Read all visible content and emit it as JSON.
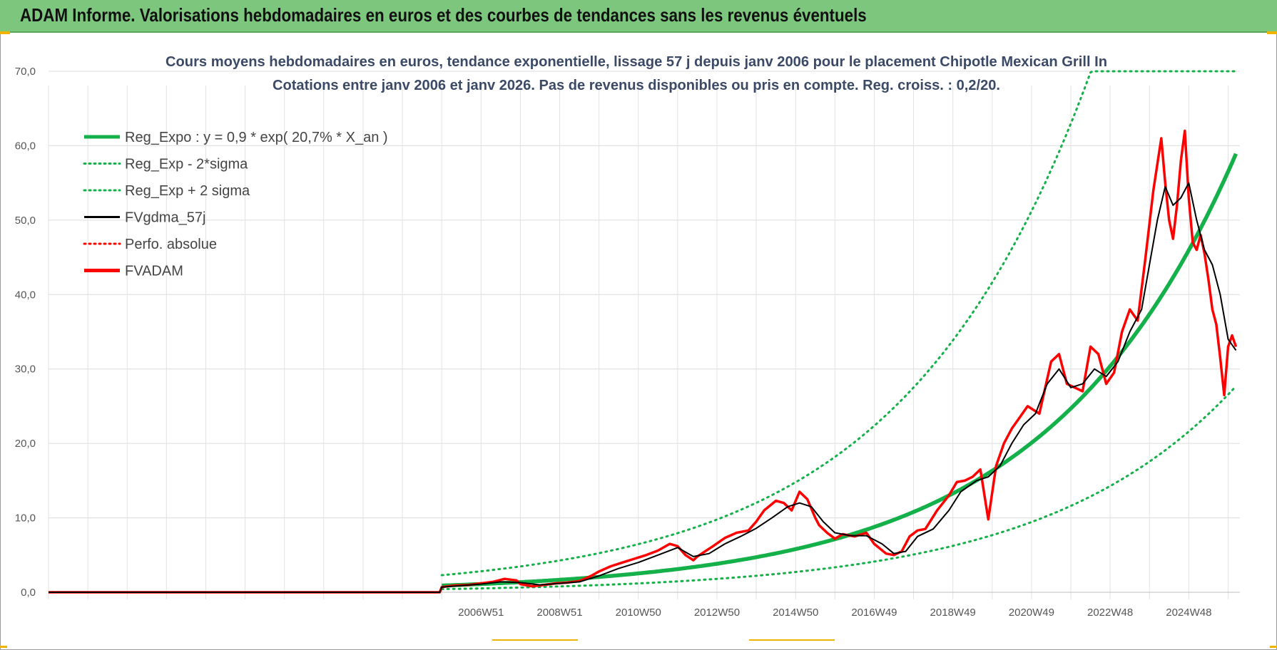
{
  "page": {
    "banner_title": "ADAM Informe. Valorisations hebdomadaires en euros et des courbes de tendances sans les revenus éventuels"
  },
  "colors": {
    "banner_bg": "#7dc67d",
    "regression": "#14b04a",
    "sigma_bands": "#14b04a",
    "smoothed": "#000000",
    "perfo": "#ff0000",
    "fvadam": "#ff0000",
    "accent_corner": "#f0b400"
  },
  "chart_data": {
    "type": "line",
    "title_lines": [
      "Cours moyens hebdomadaires en euros, tendance exponentielle, lissage 57 j depuis janv 2006  pour le placement Chipotle Mexican Grill In",
      "Cotations entre janv 2006 et janv 2026. Pas de revenus disponibles ou pris en compte. Reg. croiss. : 0,2/20."
    ],
    "xlabel": "",
    "ylabel": "",
    "ylim": [
      0,
      70
    ],
    "y_ticks": [
      "0,0",
      "10,0",
      "20,0",
      "30,0",
      "40,0",
      "50,0",
      "60,0",
      "70,0"
    ],
    "x_tick_labels": [
      "2006W51",
      "2008W51",
      "2010W50",
      "2012W50",
      "2014W50",
      "2016W49",
      "2018W49",
      "2020W49",
      "2022W48",
      "2024W48"
    ],
    "x_tick_years": [
      2007.0,
      2009.0,
      2011.0,
      2013.0,
      2015.0,
      2017.0,
      2019.0,
      2021.0,
      2023.0,
      2025.0
    ],
    "x_range_years": [
      1996.0,
      2026.3
    ],
    "grid": true,
    "legend_position": "top-left",
    "legend": [
      {
        "label": "Reg_Expo : y = 0,9 * exp( 20,7% *  X_an )",
        "style": "solid-thick",
        "color": "#14b04a"
      },
      {
        "label": "Reg_Exp - 2*sigma",
        "style": "dotted",
        "color": "#14b04a"
      },
      {
        "label": "Reg_Exp + 2 sigma",
        "style": "dotted",
        "color": "#14b04a"
      },
      {
        "label": "FVgdma_57j",
        "style": "solid",
        "color": "#000000"
      },
      {
        "label": "Perfo. absolue",
        "style": "dotted",
        "color": "#ff0000"
      },
      {
        "label": "FVADAM",
        "style": "solid-thick",
        "color": "#ff0000"
      }
    ],
    "regression": {
      "a": 0.9,
      "rate": 0.207,
      "start_year": 2006.0,
      "end_year": 2026.2,
      "lower_factor": 0.47,
      "upper_factor": 2.55,
      "cap": 70
    },
    "series_fvadam": {
      "x": [
        1996.0,
        2005.95,
        2006.0,
        2006.3,
        2006.7,
        2007.0,
        2007.3,
        2007.6,
        2007.9,
        2008.0,
        2008.3,
        2008.6,
        2008.9,
        2009.2,
        2009.5,
        2009.8,
        2010.0,
        2010.3,
        2010.6,
        2010.9,
        2011.2,
        2011.5,
        2011.8,
        2012.0,
        2012.2,
        2012.4,
        2012.5,
        2012.7,
        2012.9,
        2013.2,
        2013.5,
        2013.8,
        2014.0,
        2014.2,
        2014.5,
        2014.7,
        2014.9,
        2015.1,
        2015.3,
        2015.5,
        2015.6,
        2015.8,
        2016.0,
        2016.2,
        2016.5,
        2016.8,
        2017.0,
        2017.3,
        2017.5,
        2017.7,
        2017.9,
        2018.1,
        2018.3,
        2018.6,
        2018.9,
        2019.1,
        2019.3,
        2019.5,
        2019.7,
        2019.9,
        2020.1,
        2020.2,
        2020.3,
        2020.5,
        2020.7,
        2020.9,
        2021.2,
        2021.5,
        2021.7,
        2021.9,
        2022.1,
        2022.3,
        2022.5,
        2022.7,
        2022.9,
        2023.1,
        2023.3,
        2023.5,
        2023.7,
        2023.9,
        2024.1,
        2024.3,
        2024.4,
        2024.5,
        2024.6,
        2024.7,
        2024.8,
        2024.9,
        2025.0,
        2025.1,
        2025.2,
        2025.3,
        2025.4,
        2025.5,
        2025.6,
        2025.7,
        2025.8,
        2025.9,
        2026.0,
        2026.1,
        2026.2
      ],
      "y": [
        0.0,
        0.0,
        0.7,
        0.9,
        1.0,
        1.2,
        1.4,
        1.8,
        1.6,
        1.1,
        0.8,
        1.0,
        1.2,
        1.3,
        1.5,
        2.2,
        2.8,
        3.5,
        4.0,
        4.5,
        5.0,
        5.6,
        6.5,
        6.2,
        5.0,
        4.3,
        4.8,
        5.5,
        6.2,
        7.3,
        8.0,
        8.3,
        9.5,
        11.0,
        12.3,
        12.0,
        11.0,
        13.5,
        12.5,
        10.0,
        9.0,
        8.0,
        7.2,
        7.8,
        7.5,
        8.0,
        6.5,
        5.2,
        5.0,
        5.5,
        7.5,
        8.3,
        8.5,
        11.0,
        13.0,
        14.8,
        15.0,
        15.5,
        16.5,
        9.8,
        17.0,
        18.5,
        20.0,
        22.0,
        23.5,
        25.0,
        24.0,
        31.0,
        32.0,
        28.0,
        27.5,
        27.0,
        33.0,
        32.0,
        28.0,
        29.5,
        35.0,
        38.0,
        36.5,
        45.0,
        54.0,
        61.0,
        55.0,
        50.0,
        47.5,
        52.0,
        58.0,
        62.0,
        53.0,
        47.0,
        46.0,
        48.0,
        45.5,
        42.0,
        38.0,
        36.0,
        31.5,
        26.5,
        33.0,
        34.5,
        33.0
      ]
    },
    "series_fvgdma_57j": {
      "x": [
        1996.0,
        2005.95,
        2006.0,
        2006.5,
        2007.0,
        2007.5,
        2008.0,
        2008.5,
        2009.0,
        2009.5,
        2010.0,
        2010.5,
        2011.0,
        2011.5,
        2012.0,
        2012.4,
        2012.8,
        2013.2,
        2013.6,
        2014.0,
        2014.4,
        2014.8,
        2015.1,
        2015.4,
        2015.7,
        2016.0,
        2016.4,
        2016.8,
        2017.2,
        2017.5,
        2017.8,
        2018.1,
        2018.5,
        2018.9,
        2019.2,
        2019.6,
        2019.9,
        2020.2,
        2020.5,
        2020.8,
        2021.1,
        2021.4,
        2021.7,
        2022.0,
        2022.3,
        2022.6,
        2022.9,
        2023.2,
        2023.5,
        2023.8,
        2024.0,
        2024.2,
        2024.4,
        2024.6,
        2024.8,
        2025.0,
        2025.2,
        2025.4,
        2025.6,
        2025.8,
        2026.0,
        2026.2
      ],
      "y": [
        0.0,
        0.0,
        0.7,
        0.9,
        1.1,
        1.4,
        1.3,
        1.0,
        1.2,
        1.4,
        2.2,
        3.2,
        4.0,
        5.0,
        6.0,
        4.8,
        5.2,
        6.5,
        7.5,
        8.6,
        10.0,
        11.5,
        12.0,
        11.5,
        9.5,
        8.0,
        7.6,
        7.6,
        6.5,
        5.2,
        5.5,
        7.5,
        8.5,
        11.0,
        13.5,
        15.0,
        15.5,
        17.0,
        20.0,
        22.5,
        24.0,
        28.0,
        30.0,
        27.5,
        28.0,
        30.0,
        29.0,
        31.0,
        35.0,
        38.0,
        44.0,
        50.0,
        54.5,
        52.0,
        53.0,
        55.0,
        50.0,
        46.0,
        44.0,
        40.0,
        34.0,
        32.5
      ]
    }
  }
}
